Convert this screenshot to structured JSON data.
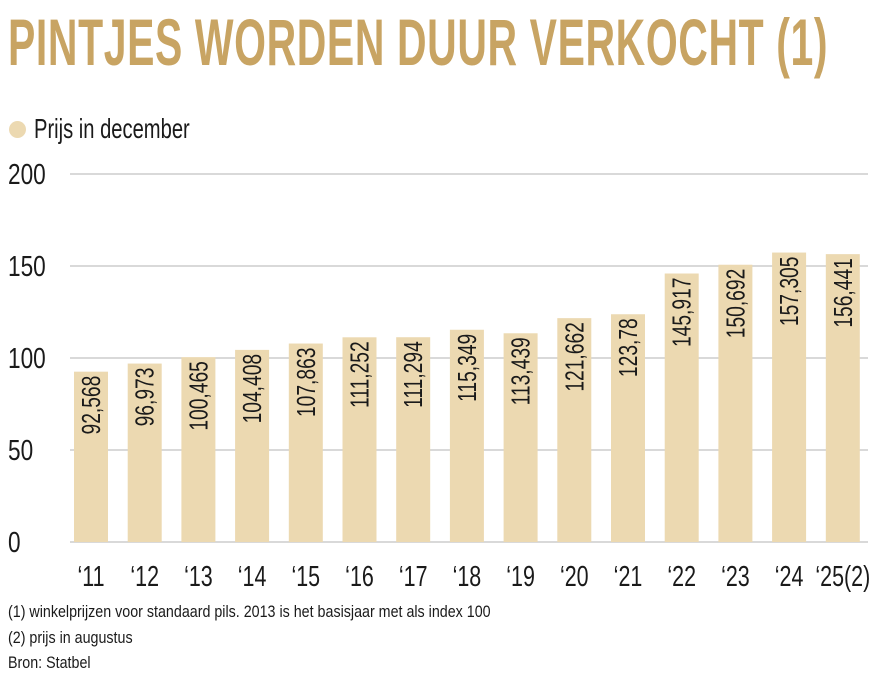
{
  "title": "PINTJES WORDEN DUUR VERKOCHT (1)",
  "legend": {
    "label": "Prijs in december"
  },
  "colors": {
    "title": "#c8a463",
    "bar": "#ecd9b1",
    "grid": "#b3b3b3",
    "text": "#1a1a1a"
  },
  "chart_data": {
    "type": "bar",
    "title": "PINTJES WORDEN DUUR VERKOCHT (1)",
    "xlabel": "",
    "ylabel": "",
    "ylim": [
      0,
      200
    ],
    "yticks": [
      0,
      50,
      100,
      150,
      200
    ],
    "grid": true,
    "legend": "top-left",
    "categories": [
      "‘11",
      "‘12",
      "‘13",
      "‘14",
      "‘15",
      "‘16",
      "‘17",
      "‘18",
      "‘19",
      "‘20",
      "‘21",
      "‘22",
      "‘23",
      "‘24",
      "‘25(2)"
    ],
    "series": [
      {
        "name": "Prijs in december",
        "values": [
          92.568,
          96.973,
          100.465,
          104.408,
          107.863,
          111.252,
          111.294,
          115.349,
          113.439,
          121.662,
          123.78,
          145.917,
          150.692,
          157.305,
          156.441
        ],
        "labels": [
          "92,568",
          "96,973",
          "100,465",
          "104,408",
          "107,863",
          "111,252",
          "111,294",
          "115,349",
          "113,439",
          "121,662",
          "123,78",
          "145,917",
          "150,692",
          "157,305",
          "156,441"
        ]
      }
    ]
  },
  "footnotes": [
    "(1) winkelprijzen voor standaard pils. 2013 is het basisjaar met als index 100",
    "(2) prijs in augustus",
    "Bron: Statbel"
  ]
}
